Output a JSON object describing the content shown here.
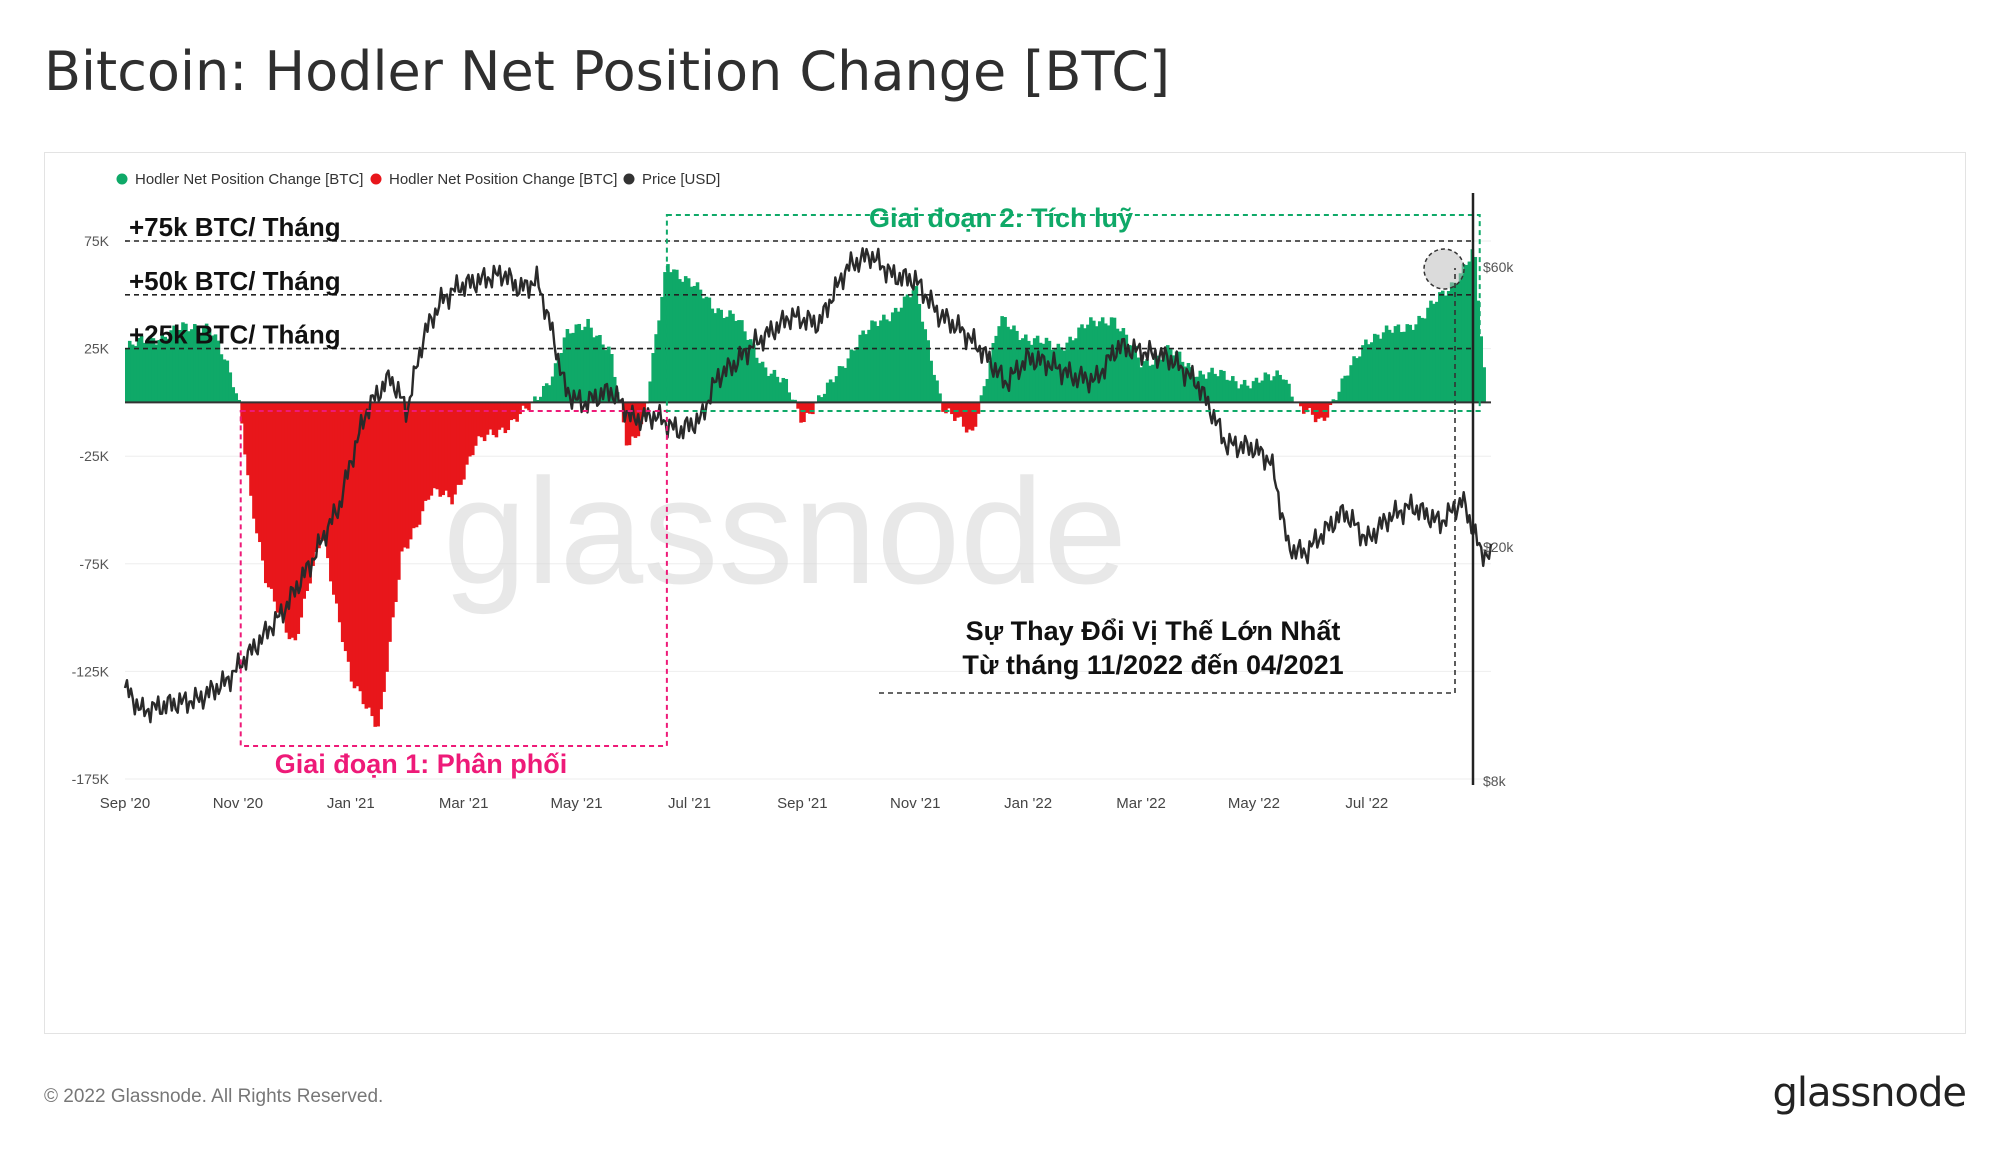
{
  "header": {
    "title": "Bitcoin: Hodler Net Position Change [BTC]"
  },
  "footer": {
    "copyright": "© 2022 Glassnode. All Rights Reserved.",
    "logo": "glassnode"
  },
  "watermark": "glassnode",
  "chart_data": {
    "type": "bar",
    "title": "Bitcoin: Hodler Net Position Change [BTC]",
    "legend": [
      {
        "label": "Hodler Net Position Change [BTC]",
        "color": "#0fa968",
        "icon": "green-dot"
      },
      {
        "label": "Hodler Net Position Change [BTC]",
        "color": "#e8161b",
        "icon": "red-dot"
      },
      {
        "label": "Price [USD]",
        "color": "#333333",
        "icon": "black-dot"
      }
    ],
    "x_ticks": [
      "Sep '20",
      "Nov '20",
      "Jan '21",
      "Mar '21",
      "May '21",
      "Jul '21",
      "Sep '21",
      "Nov '21",
      "Jan '22",
      "Mar '22",
      "May '22",
      "Jul '22"
    ],
    "x_range_months": [
      0,
      24.2
    ],
    "y_left": {
      "ticks": [
        "75K",
        "25K",
        "-25K",
        "-75K",
        "-125K",
        "-175K"
      ],
      "tick_values": [
        75000,
        25000,
        -25000,
        -75000,
        -125000,
        -175000
      ],
      "range": [
        -175000,
        75000
      ]
    },
    "y_right": {
      "ticks": [
        "$60k",
        "$20k",
        "$8k"
      ],
      "scale": "log"
    },
    "net_position_series": {
      "unit": "BTC",
      "x_months": [
        0,
        0.5,
        1.0,
        1.5,
        1.9,
        2.05,
        2.2,
        2.5,
        3.0,
        3.5,
        4.0,
        4.5,
        4.9,
        5.4,
        5.8,
        6.2,
        6.5,
        6.8,
        7.2,
        7.6,
        7.8,
        8.2,
        8.6,
        8.9,
        9.2,
        9.6,
        10.0,
        10.4,
        10.8,
        11.3,
        11.7,
        12.0,
        12.5,
        13.0,
        13.5,
        14.0,
        14.5,
        15.0,
        15.5,
        16.0,
        16.5,
        17.0,
        17.5,
        18.0,
        18.5,
        19.0,
        19.5,
        20.0,
        20.5,
        20.8,
        21.2,
        21.5,
        22.0,
        22.6,
        23.0,
        23.5,
        23.9,
        24.1
      ],
      "values": [
        25000,
        30000,
        34000,
        36000,
        10000,
        -3000,
        -40000,
        -85000,
        -112000,
        -60000,
        -130000,
        -150000,
        -72000,
        -42000,
        -45000,
        -20000,
        -15000,
        -10000,
        -2000,
        15000,
        30000,
        38000,
        22000,
        -20000,
        -8000,
        65000,
        56000,
        45000,
        40000,
        18000,
        8000,
        -8000,
        8000,
        30000,
        40000,
        52000,
        -3000,
        -15000,
        38000,
        30000,
        25000,
        35000,
        40000,
        18000,
        24000,
        14000,
        12000,
        8000,
        15000,
        -4000,
        -8000,
        5000,
        30000,
        34000,
        40000,
        55000,
        70000,
        5000
      ]
    },
    "price_series": {
      "unit": "USD",
      "x_months": [
        0,
        0.3,
        0.8,
        1.3,
        1.8,
        2.3,
        2.8,
        3.3,
        3.8,
        4.3,
        4.7,
        5.0,
        5.3,
        5.6,
        5.9,
        6.3,
        6.7,
        7.0,
        7.3,
        7.6,
        7.8,
        8.1,
        8.6,
        9.0,
        9.4,
        9.8,
        10.2,
        10.5,
        10.8,
        11.1,
        11.5,
        11.8,
        12.3,
        12.8,
        13.2,
        13.6,
        14.0,
        14.4,
        14.8,
        15.2,
        15.6,
        16.0,
        16.4,
        16.8,
        17.2,
        17.6,
        18.0,
        18.5,
        19.0,
        19.5,
        20.0,
        20.3,
        20.6,
        20.9,
        21.2,
        21.6,
        22.0,
        22.4,
        22.8,
        23.3,
        23.7,
        24.0,
        24.2
      ],
      "values": [
        11500,
        10500,
        10800,
        11000,
        11800,
        13500,
        15500,
        18800,
        23500,
        34500,
        39000,
        34000,
        46000,
        52500,
        55500,
        57000,
        58500,
        55000,
        57000,
        45000,
        37000,
        35000,
        37000,
        33000,
        33500,
        31500,
        33000,
        39000,
        41000,
        44000,
        47000,
        49500,
        48000,
        60000,
        63000,
        58000,
        57000,
        50000,
        47000,
        43000,
        38000,
        42000,
        41000,
        39000,
        38500,
        44000,
        43000,
        42000,
        38000,
        30000,
        29500,
        28000,
        20000,
        19500,
        21000,
        23000,
        20500,
        22500,
        23500,
        22000,
        24000,
        19800,
        19200
      ]
    },
    "reference_lines": [
      {
        "label": "+75k BTC/ Tháng",
        "value": 75000
      },
      {
        "label": "+50k BTC/ Tháng",
        "value": 50000
      },
      {
        "label": "+25k BTC/ Tháng",
        "value": 25000
      }
    ],
    "annotations": {
      "phase1": {
        "label": "Giai đoạn 1: Phân phối",
        "x_start_months": 2.05,
        "x_end_months": 9.6,
        "color": "#ee1a78"
      },
      "phase2": {
        "label": "Giai đoạn 2: Tích luỹ",
        "x_start_months": 9.6,
        "x_end_months": 24.0,
        "color": "#0fa968"
      },
      "largest_change_line1": "Sự Thay Đổi Vị Thế Lớn Nhất",
      "largest_change_line2": "Từ tháng 11/2022 đến 04/2021"
    }
  }
}
